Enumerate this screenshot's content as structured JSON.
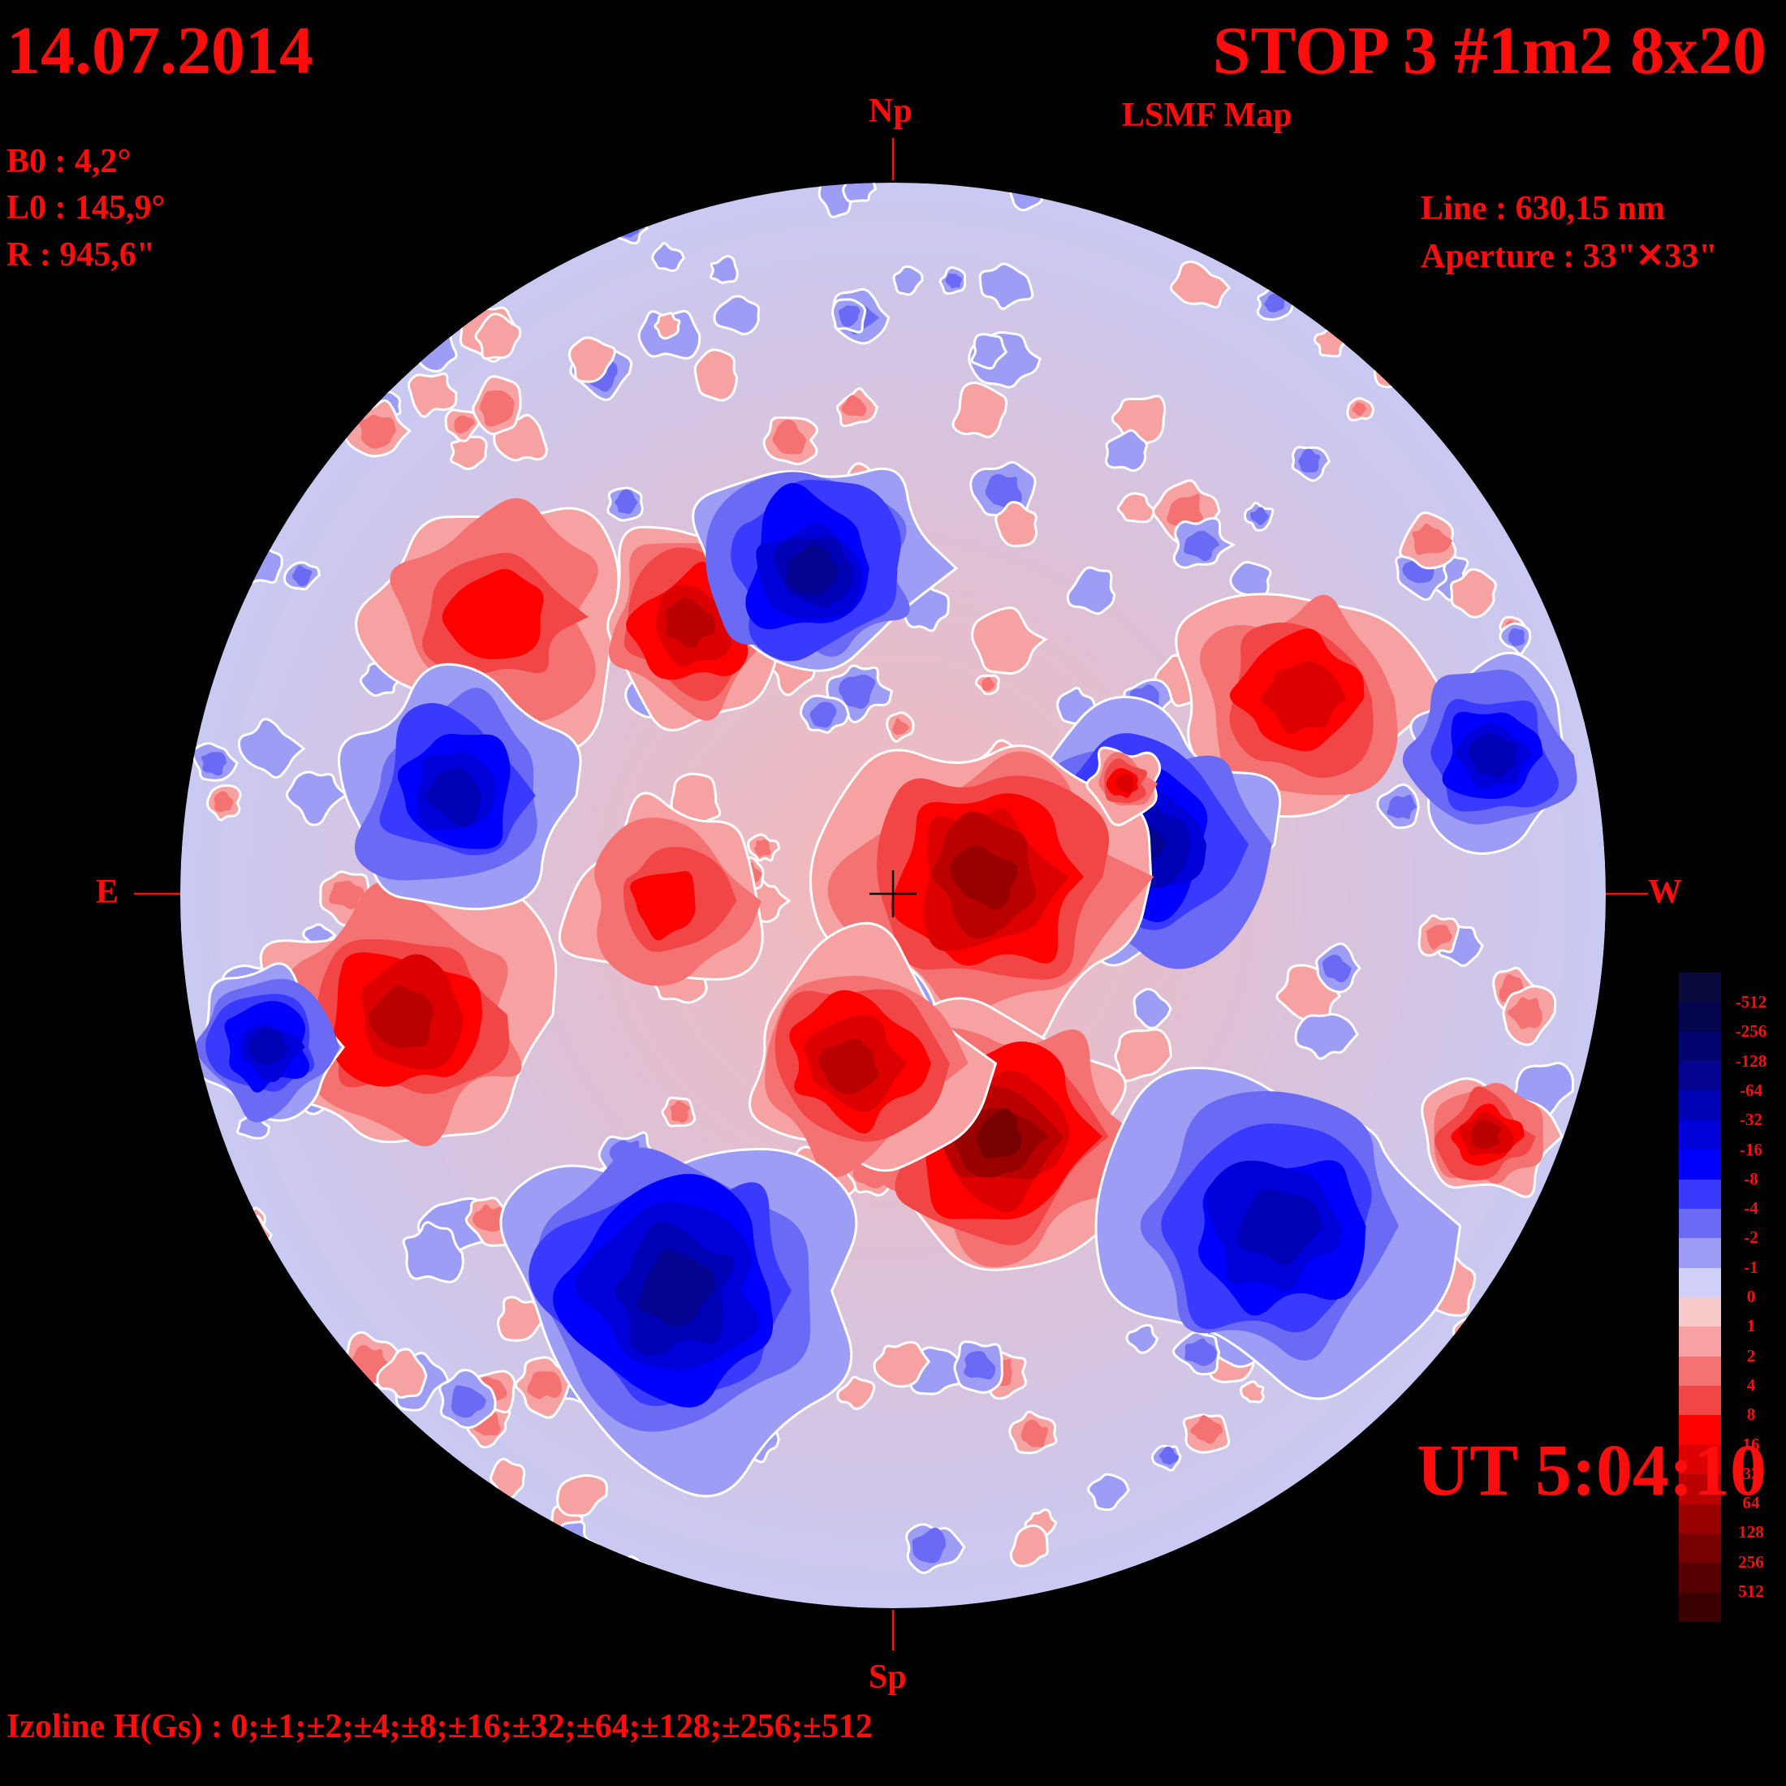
{
  "header": {
    "date": "14.07.2014",
    "title": "STOP 3 #1m2 8x20",
    "subtitle": "LSMF  Map"
  },
  "parameters": {
    "b0": "B0 : 4,2°",
    "l0": "L0 : 145,9°",
    "r": "R  : 945,6\""
  },
  "instrument": {
    "line": "Line :  630,15 nm",
    "aperture": "Aperture : 33\"✕33\""
  },
  "time": "UT 5:04:10",
  "footer": {
    "izoline": "Izoline H(Gs) : 0;±1;±2;±4;±8;±16;±32;±64;±128;±256;±512"
  },
  "orientation": {
    "north": "Np",
    "south": "Sp",
    "east": "E",
    "west": "W"
  },
  "colorbar": {
    "labels": [
      "-512",
      "-256",
      "-128",
      "-64",
      "-32",
      "-16",
      "-8",
      "-4",
      "-2",
      "-1",
      "0",
      "1",
      "2",
      "4",
      "8",
      "16",
      "32",
      "64",
      "128",
      "256",
      "512"
    ],
    "colors": [
      "#0a0a3c",
      "#04044f",
      "#040470",
      "#040490",
      "#0000b4",
      "#0000d8",
      "#0000ff",
      "#3a3aff",
      "#6a6af5",
      "#9d9df5",
      "#cfcff7",
      "#f8caca",
      "#f7a2a2",
      "#f57272",
      "#f24545",
      "#ff0000",
      "#dd0000",
      "#bb0000",
      "#990000",
      "#770000",
      "#550000",
      "#3a0000"
    ]
  },
  "colors": {
    "background": "#000000",
    "text": "#ff0d0d",
    "contour": "#ffffff"
  }
}
